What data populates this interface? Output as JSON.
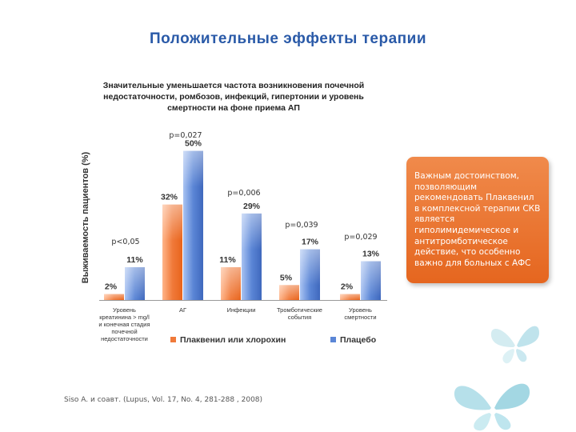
{
  "slide": {
    "title": "Положительные эффекты терапии",
    "chart_heading": [
      "Значительные уменьшается частота возникновения почечной",
      "недостаточности, ромбозов, инфекций, гипертонии и уровень",
      "смертности на фоне приема АП"
    ],
    "callout_text": "Важным достоинством, позволяющим рекомендовать Плаквенил в комплексной терапии СКВ является гиполимидемическое и антитромботическое действие, что особенно важно для больных с АФС",
    "source": "Siso A. и соавт. (Lupus, Vol. 17, No. 4, 281-288 , 2008)"
  },
  "chart_data": {
    "type": "bar",
    "ylabel": "Выживаемость пациентов (%)",
    "categories": [
      [
        "Уровень",
        "креатинина > mg/l",
        "и конечная стадия",
        "почечной",
        "недостаточности"
      ],
      [
        "АГ"
      ],
      [
        "Инфекции"
      ],
      [
        "Тромботические",
        "события"
      ],
      [
        "Уровень",
        "смертности"
      ]
    ],
    "series": [
      {
        "name": "Плаквенил или хлорохин",
        "values": [
          2,
          32,
          11,
          5,
          2
        ],
        "color": "#f07a3a"
      },
      {
        "name": "Плацебо",
        "values": [
          11,
          50,
          29,
          17,
          13
        ],
        "color": "#5b86d6"
      }
    ],
    "value_labels": [
      [
        "2%",
        "32%",
        "11%",
        "5%",
        "2%"
      ],
      [
        "11%",
        "50%",
        "29%",
        "17%",
        "13%"
      ]
    ],
    "p_values": [
      "p<0,05",
      "p=0,027",
      "p=0,006",
      "p=0,039",
      "p=0,029"
    ],
    "legend_position": "bottom",
    "grid": false
  },
  "colors": {
    "title": "#2a5aa8",
    "callout": "#e96f2a",
    "orange": "#f07a3a",
    "blue": "#5b86d6"
  }
}
